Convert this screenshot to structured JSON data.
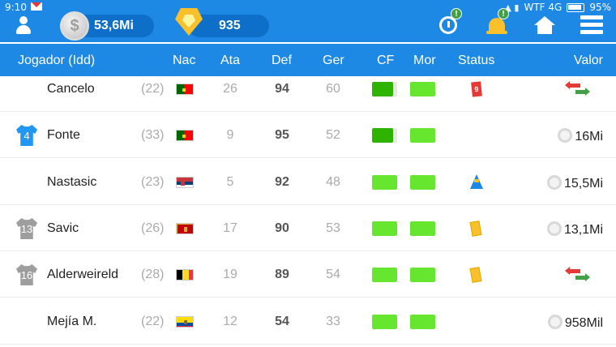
{
  "status_bar": {
    "time": "9:10",
    "carrier": "WTF 4G",
    "battery": "95%"
  },
  "topbar": {
    "money": "53,6Mi",
    "points": "935",
    "coin_symbol": "$",
    "clock_badge": "!",
    "bell_badge": "!"
  },
  "header": {
    "jogador": "Jogador (Idd)",
    "nac": "Nac",
    "ata": "Ata",
    "def": "Def",
    "ger": "Ger",
    "cf": "CF",
    "mor": "Mor",
    "status": "Status",
    "valor": "Valor"
  },
  "colors": {
    "primary": "#1e88e5",
    "bar_green_dark": "#2db300",
    "bar_green": "#66e62e"
  },
  "players": [
    {
      "name": "Cancelo",
      "age": "(22)",
      "nation": "portugal",
      "ata": "26",
      "def": "94",
      "ger": "60",
      "cf": 0.85,
      "mor": 1.0,
      "status": "red-card",
      "status_text": "9",
      "valor": "",
      "valor_icon": "transfer-icon",
      "shirt": "",
      "shirt_color": ""
    },
    {
      "name": "Fonte",
      "age": "(33)",
      "nation": "portugal",
      "ata": "9",
      "def": "95",
      "ger": "52",
      "cf": 0.85,
      "mor": 1.0,
      "status": "",
      "status_text": "",
      "valor": "16Mi",
      "valor_icon": "coin-icon",
      "shirt": "4",
      "shirt_color": "#2196f3"
    },
    {
      "name": "Nastasic",
      "age": "(23)",
      "nation": "serbia",
      "ata": "5",
      "def": "92",
      "ger": "48",
      "cf": 1.0,
      "mor": 1.0,
      "status": "training-cone",
      "status_text": "",
      "valor": "15,5Mi",
      "valor_icon": "coin-icon",
      "shirt": "",
      "shirt_color": ""
    },
    {
      "name": "Savic",
      "age": "(26)",
      "nation": "montenegro",
      "ata": "17",
      "def": "90",
      "ger": "53",
      "cf": 1.0,
      "mor": 1.0,
      "status": "yellow-card",
      "status_text": "",
      "valor": "13,1Mi",
      "valor_icon": "coin-icon",
      "shirt": "13",
      "shirt_color": "#9e9e9e"
    },
    {
      "name": "Alderweireld",
      "age": "(28)",
      "nation": "belgium",
      "ata": "19",
      "def": "89",
      "ger": "54",
      "cf": 1.0,
      "mor": 1.0,
      "status": "yellow-card",
      "status_text": "",
      "valor": "",
      "valor_icon": "transfer-icon",
      "shirt": "16",
      "shirt_color": "#9e9e9e"
    },
    {
      "name": "Mejía M.",
      "age": "(22)",
      "nation": "ecuador",
      "ata": "12",
      "def": "54",
      "ger": "33",
      "cf": 1.0,
      "mor": 1.0,
      "status": "",
      "status_text": "",
      "valor": "958Mil",
      "valor_icon": "coin-icon",
      "shirt": "",
      "shirt_color": ""
    }
  ]
}
